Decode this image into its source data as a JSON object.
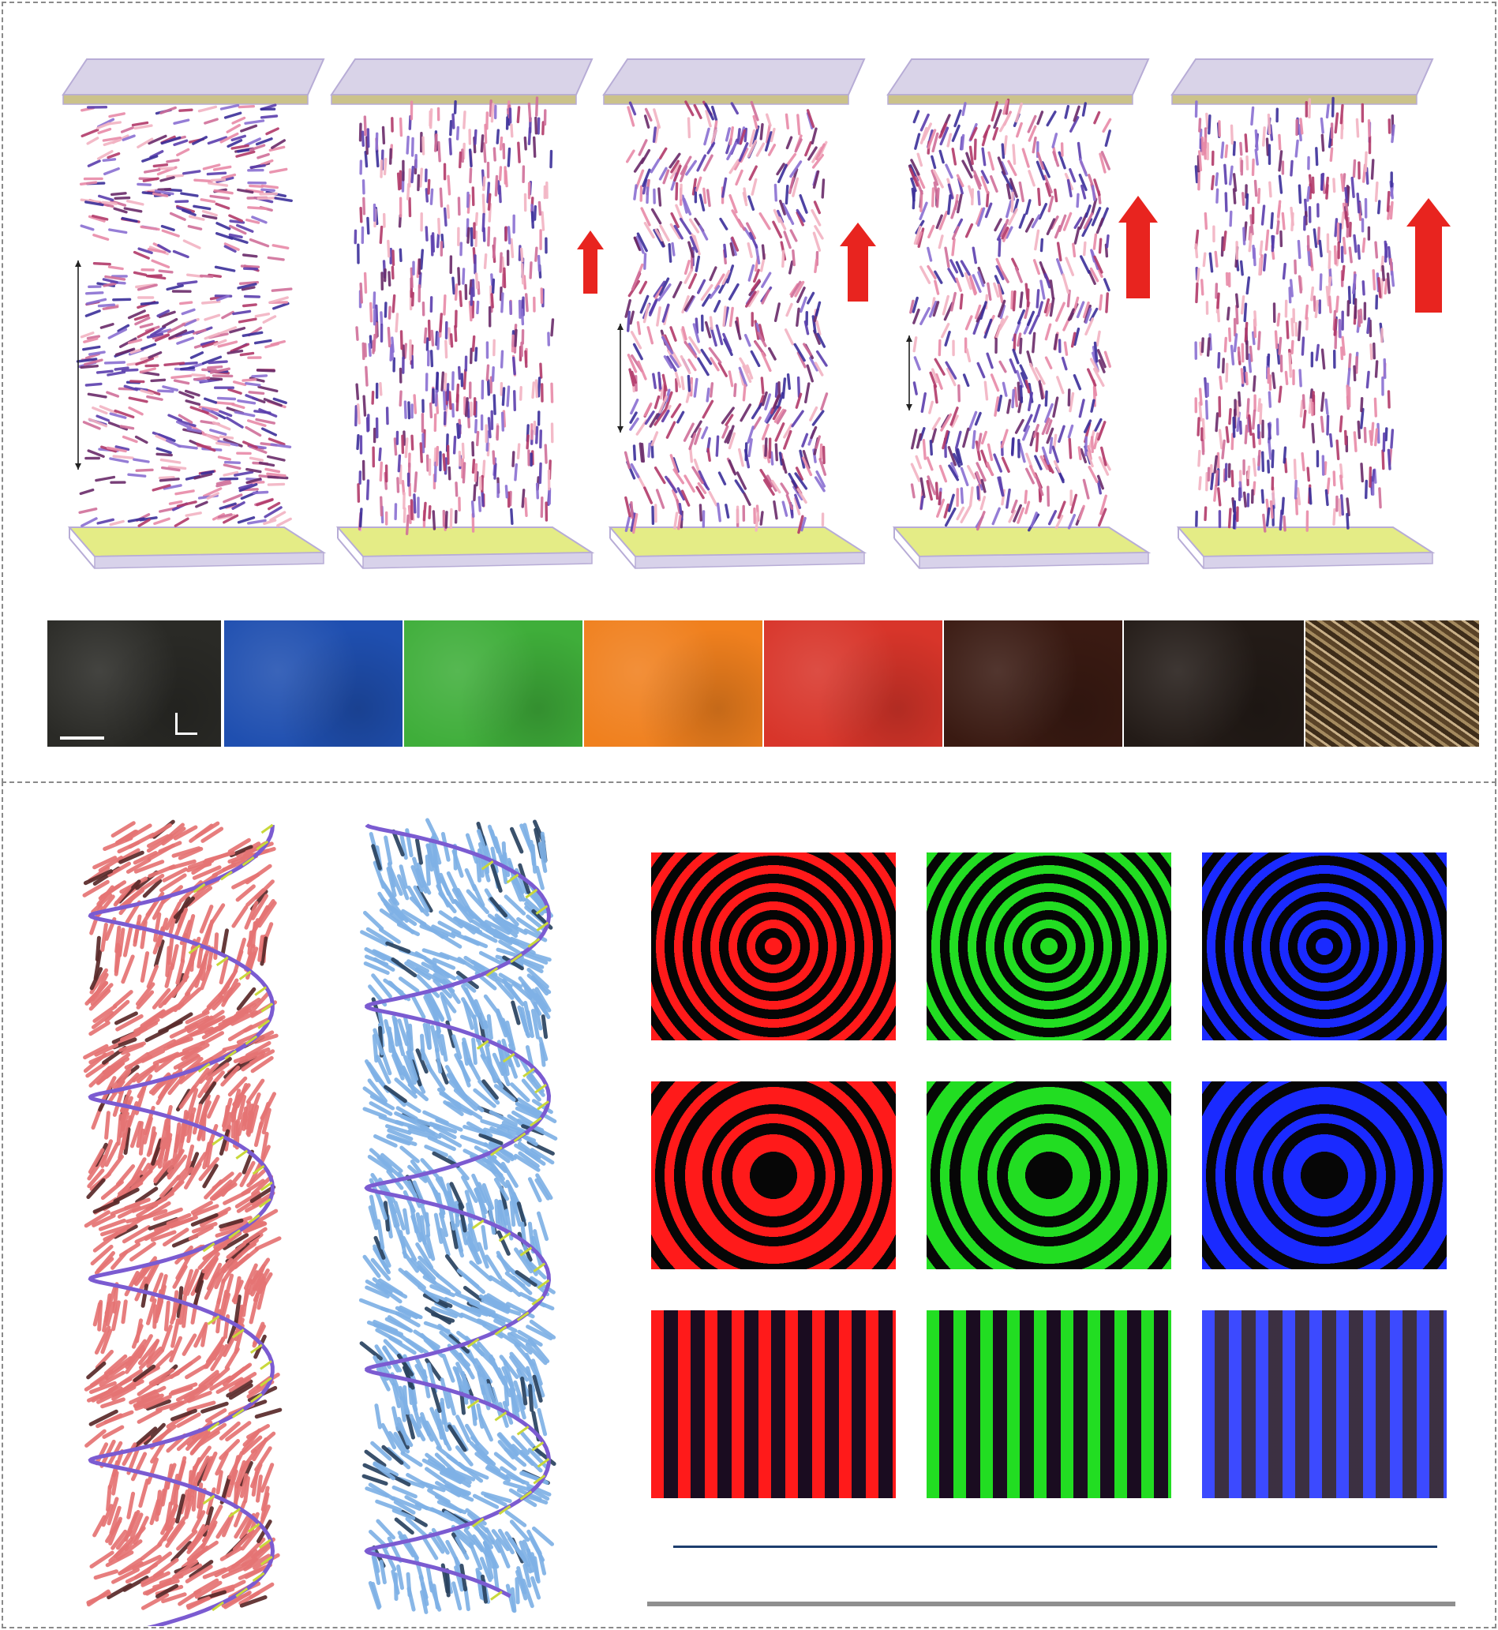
{
  "figure": {
    "top_panel": {
      "cells": [
        {
          "id": "cell-1",
          "field_arrow": 0
        },
        {
          "id": "cell-2",
          "field_arrow": 1
        },
        {
          "id": "cell-3",
          "field_arrow": 2
        },
        {
          "id": "cell-4",
          "field_arrow": 3
        },
        {
          "id": "cell-5",
          "field_arrow": 4
        }
      ],
      "strip_colors": [
        "#2a2a26",
        "#1f4fb0",
        "#3fae3a",
        "#f0801e",
        "#d8352a",
        "#3a1a12",
        "#231b17",
        "#6b5433"
      ],
      "field_arrow_color": "#e8241f"
    },
    "bottom_panel": {
      "helices": [
        {
          "id": "helix-red",
          "color": "#e57474"
        },
        {
          "id": "helix-blue",
          "color": "#7fb1e6"
        }
      ],
      "pattern_grid": {
        "colors": [
          "#ff1a1a",
          "#22dd22",
          "#1a2aff"
        ],
        "rows": [
          "rings",
          "rings-dark-center",
          "stripes"
        ]
      },
      "line_colors": [
        "#1d3e6e",
        "#8f8f8f"
      ]
    }
  }
}
